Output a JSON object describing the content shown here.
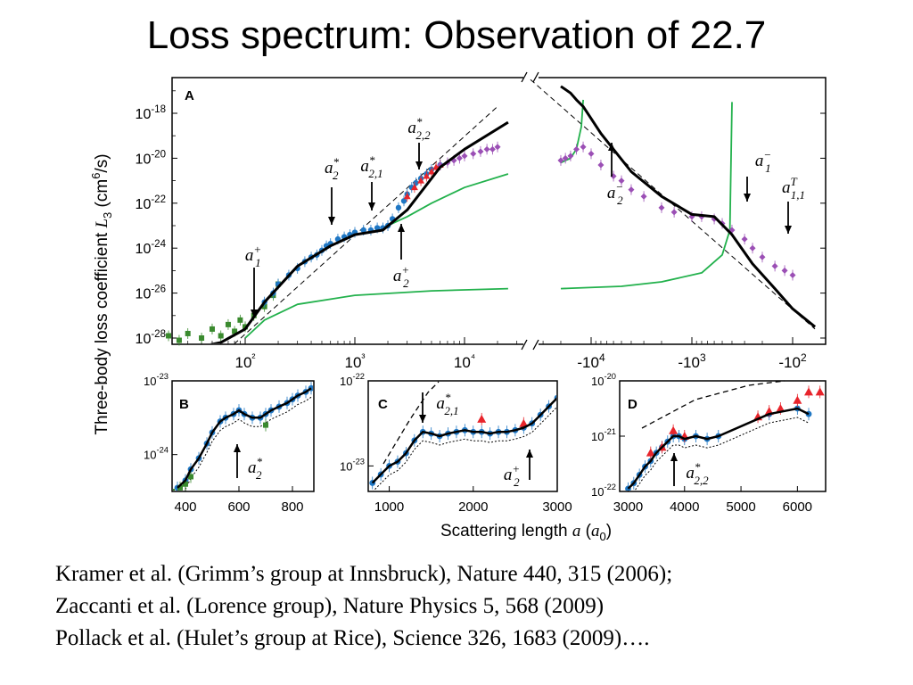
{
  "slide": {
    "title": "Loss spectrum: Observation of 22.7"
  },
  "references": [
    "Kramer et al. (Grimm’s group at Innsbruck), Nature 440, 315 (2006);",
    "Zaccanti et al. (Lorence group), Nature Physics 5, 568 (2009)",
    "Pollack et al. (Hulet’s group at Rice), Science 326, 1683 (2009)…."
  ],
  "colors": {
    "theory_line": "#000000",
    "green_curve": "#22b14c",
    "blue_points": "#1f77c4",
    "red_points": "#e8242b",
    "purple_points": "#9b4fb5",
    "green_points": "#3a8a2e"
  },
  "chart_data": [
    {
      "panel": "A",
      "type": "scatter",
      "ylabel": "Three-body loss coefficient L3 (cm6/s)",
      "xlabel": "Scattering length a (a0)",
      "y_scale": "log",
      "ylim": [
        1e-28,
        1e-17
      ],
      "y_ticks": [
        "10-18",
        "10-20",
        "10-22",
        "10-24",
        "10-26",
        "10-28"
      ],
      "x_ticks_positive": [
        "10²",
        "10³",
        "10⁴"
      ],
      "x_ticks_negative": [
        "-10⁴",
        "-10³",
        "-10²"
      ],
      "annotations": [
        "a1+",
        "a2*",
        "a2,1*",
        "a2,2*",
        "a2+",
        "a2-",
        "a1-",
        "a1,1T"
      ],
      "black_curve_positive": {
        "x": [
          30,
          60,
          100,
          150,
          300,
          600,
          1000,
          1800,
          3000,
          6000,
          10000,
          25000
        ],
        "y": [
          -28.5,
          -28.2,
          -27.6,
          -26.4,
          -24.8,
          -23.9,
          -23.4,
          -23.2,
          -22.3,
          -20.4,
          -19.6,
          -18.4
        ]
      },
      "black_curve_negative": {
        "x": [
          -20000,
          -16000,
          -14000,
          -12000,
          -8000,
          -4000,
          -2000,
          -1000,
          -600,
          -400,
          -250,
          -150,
          -100,
          -60
        ],
        "y": [
          -16.8,
          -17.1,
          -17.4,
          -17.7,
          -18.9,
          -20.6,
          -21.7,
          -22.5,
          -22.6,
          -23.4,
          -24.7,
          -25.8,
          -26.7,
          -27.5
        ]
      },
      "green_curve_positive_upper": {
        "x": [
          1800,
          3000,
          5000,
          10000,
          25000
        ],
        "y": [
          -23.1,
          -22.6,
          -22.0,
          -21.3,
          -20.7
        ]
      },
      "green_curve_positive_lower": {
        "x": [
          100,
          150,
          300,
          1000,
          5000,
          25000
        ],
        "y": [
          -28.0,
          -27.2,
          -26.5,
          -26.1,
          -25.9,
          -25.8
        ]
      },
      "green_curve_negative_upper": {
        "x": [
          -20000,
          -16000,
          -14000,
          -12500,
          -12000
        ],
        "y": [
          -20.2,
          -20.0,
          -19.6,
          -18.6,
          -17.4
        ]
      },
      "green_curve_negative_lower": {
        "x": [
          -20000,
          -5000,
          -2000,
          -800,
          -500,
          -420,
          -400
        ],
        "y": [
          -25.8,
          -25.7,
          -25.5,
          -25.1,
          -24.3,
          -23.2,
          -17.5
        ]
      },
      "series": [
        {
          "name": "",
          "color": "green",
          "x": [
            20,
            25,
            30,
            40,
            50,
            60,
            70,
            80,
            90,
            100,
            120,
            150,
            180,
            200
          ],
          "y": [
            -27.9,
            -28.1,
            -27.8,
            -28.0,
            -27.6,
            -27.9,
            -27.4,
            -27.7,
            -27.2,
            -27.5,
            -27.0,
            -26.6,
            -26.1,
            -25.6
          ]
        },
        {
          "name": "",
          "color": "blue",
          "x": [
            150,
            180,
            200,
            250,
            300,
            350,
            400,
            450,
            500,
            550,
            600,
            700,
            800,
            900,
            1000,
            1200,
            1400,
            1600,
            1800,
            2000,
            2200,
            2500,
            2800,
            3000,
            3300,
            3600,
            4000,
            4500,
            5000,
            6000
          ],
          "y": [
            -26.4,
            -26.0,
            -25.6,
            -25.2,
            -24.9,
            -24.6,
            -24.4,
            -24.3,
            -24.1,
            -23.9,
            -23.8,
            -23.6,
            -23.5,
            -23.4,
            -23.3,
            -23.2,
            -23.2,
            -23.1,
            -23.1,
            -23.0,
            -22.7,
            -22.2,
            -21.9,
            -21.6,
            -21.3,
            -21.1,
            -20.9,
            -20.7,
            -20.5,
            -20.3
          ]
        },
        {
          "name": "",
          "color": "red",
          "x": [
            3000,
            3500,
            4000,
            4500,
            5000,
            5500,
            6000
          ],
          "y": [
            -21.7,
            -21.3,
            -21.0,
            -20.8,
            -20.6,
            -20.4,
            -20.3
          ]
        },
        {
          "name": "",
          "color": "purple",
          "x": [
            6000,
            7000,
            8000,
            9000,
            10000,
            12000,
            14000,
            16000,
            18000,
            20000
          ],
          "y": [
            -20.3,
            -20.2,
            -20.1,
            -20.0,
            -19.9,
            -19.8,
            -19.7,
            -19.6,
            -19.6,
            -19.5
          ]
        },
        {
          "name": "",
          "color": "purple",
          "x": [
            -20000,
            -18000,
            -16000,
            -14000,
            -12000,
            -10000,
            -8000,
            -6000,
            -5000,
            -4000,
            -3000,
            -2000,
            -1500,
            -1000,
            -800,
            -600,
            -500,
            -400,
            -300,
            -250,
            -200,
            -150,
            -120,
            -100
          ],
          "y": [
            -20.1,
            -20.0,
            -19.9,
            -19.6,
            -19.5,
            -19.8,
            -20.3,
            -20.8,
            -21.0,
            -21.4,
            -21.7,
            -22.2,
            -22.4,
            -22.6,
            -22.6,
            -22.7,
            -22.9,
            -23.2,
            -23.6,
            -24.0,
            -24.4,
            -24.8,
            -25.0,
            -25.2
          ]
        }
      ]
    },
    {
      "panel": "B",
      "type": "scatter",
      "y_scale": "log",
      "xlim": [
        350,
        880
      ],
      "ylim_exp": [
        -24.5,
        -23
      ],
      "x_ticks": [
        "400",
        "600",
        "800"
      ],
      "y_ticks": [
        "10-23",
        "10-24"
      ],
      "annotation": "a2*",
      "series": [
        {
          "name": "",
          "color": "blue",
          "x": [
            370,
            400,
            420,
            450,
            480,
            500,
            530,
            550,
            580,
            600,
            620,
            650,
            680,
            700,
            720,
            750,
            780,
            800,
            820,
            850,
            870
          ],
          "y": [
            -24.45,
            -24.35,
            -24.2,
            -24.05,
            -23.85,
            -23.7,
            -23.55,
            -23.5,
            -23.45,
            -23.4,
            -23.45,
            -23.5,
            -23.5,
            -23.45,
            -23.4,
            -23.35,
            -23.3,
            -23.25,
            -23.2,
            -23.15,
            -23.1
          ]
        },
        {
          "name": "",
          "color": "green",
          "x": [
            350,
            380,
            400,
            420,
            700
          ],
          "y": [
            -24.5,
            -24.45,
            -24.4,
            -24.3,
            -23.6
          ]
        }
      ]
    },
    {
      "panel": "C",
      "type": "scatter",
      "y_scale": "log",
      "xlim": [
        750,
        3000
      ],
      "ylim_exp": [
        -23.3,
        -22
      ],
      "x_ticks": [
        "1000",
        "2000",
        "3000"
      ],
      "y_ticks": [
        "10-22",
        "10-23"
      ],
      "annotations": [
        "a2,1*",
        "a2+"
      ],
      "series": [
        {
          "name": "",
          "color": "blue",
          "x": [
            800,
            900,
            1000,
            1100,
            1200,
            1300,
            1400,
            1500,
            1600,
            1700,
            1800,
            1900,
            2000,
            2100,
            2200,
            2300,
            2400,
            2500,
            2600,
            2700,
            2800,
            2900,
            3000
          ],
          "y": [
            -23.2,
            -23.1,
            -23.0,
            -22.95,
            -22.85,
            -22.7,
            -22.6,
            -22.62,
            -22.65,
            -22.62,
            -22.6,
            -22.58,
            -22.6,
            -22.6,
            -22.62,
            -22.6,
            -22.6,
            -22.58,
            -22.55,
            -22.5,
            -22.4,
            -22.3,
            -22.2
          ]
        },
        {
          "name": "",
          "color": "red",
          "x": [
            2100,
            2600
          ],
          "y": [
            -22.45,
            -22.5
          ]
        }
      ]
    },
    {
      "panel": "D",
      "type": "scatter",
      "y_scale": "log",
      "xlim": [
        2850,
        6500
      ],
      "ylim_exp": [
        -22,
        -20
      ],
      "x_ticks": [
        "3000",
        "4000",
        "5000",
        "6000"
      ],
      "y_ticks": [
        "10-20",
        "10-21",
        "10-22"
      ],
      "annotation": "a2,2*",
      "series": [
        {
          "name": "",
          "color": "blue",
          "x": [
            3000,
            3100,
            3200,
            3300,
            3400,
            3500,
            3600,
            3700,
            3800,
            3900,
            4000,
            4200,
            4400,
            4600,
            5500,
            6000,
            6200
          ],
          "y": [
            -21.95,
            -21.85,
            -21.7,
            -21.55,
            -21.45,
            -21.3,
            -21.2,
            -21.1,
            -21.0,
            -21.0,
            -21.05,
            -21.0,
            -21.05,
            -21.0,
            -20.6,
            -20.5,
            -20.6
          ]
        },
        {
          "name": "",
          "color": "red",
          "x": [
            3400,
            3600,
            3800,
            4000,
            5300,
            5500,
            5700,
            6000,
            6200,
            6400
          ],
          "y": [
            -21.3,
            -21.2,
            -20.9,
            -21.0,
            -20.65,
            -20.55,
            -20.5,
            -20.35,
            -20.2,
            -20.2
          ]
        }
      ]
    }
  ]
}
